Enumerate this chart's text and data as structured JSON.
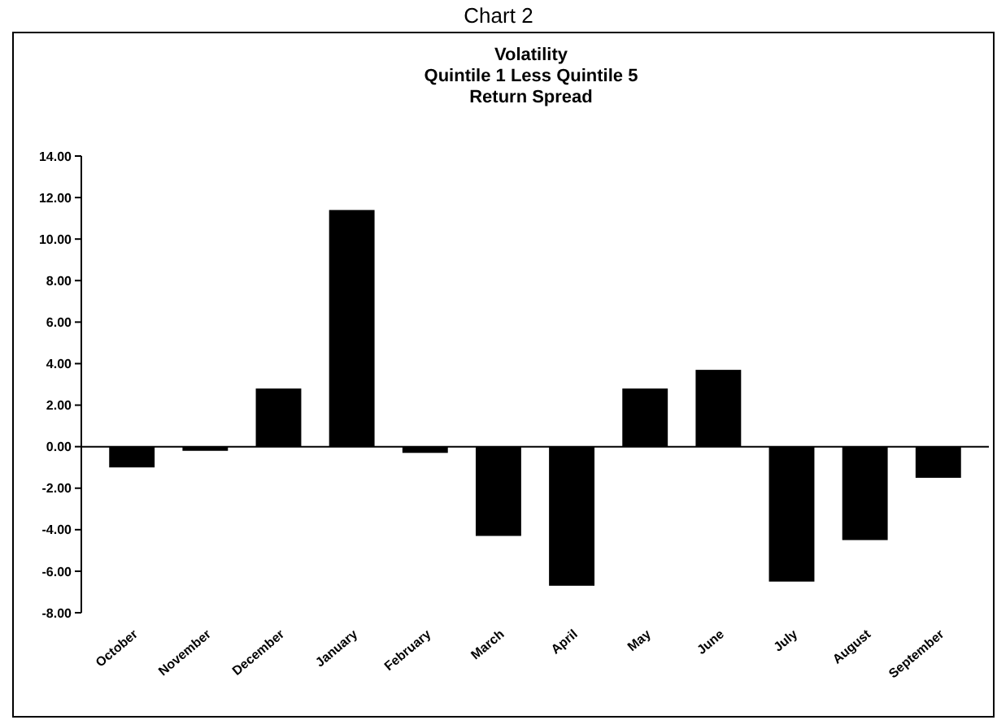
{
  "chart_data": {
    "type": "bar",
    "title": "Chart 2",
    "subtitle": "Volatility\nQuintile 1 Less Quintile 5\nReturn Spread",
    "categories": [
      "October",
      "November",
      "December",
      "January",
      "February",
      "March",
      "April",
      "May",
      "June",
      "July",
      "August",
      "September"
    ],
    "values": [
      -1.0,
      -0.2,
      2.8,
      11.4,
      -0.3,
      -4.3,
      -6.7,
      2.8,
      3.7,
      -6.5,
      -4.5,
      -1.5
    ],
    "color": "#000000",
    "ylim": [
      -8,
      14
    ],
    "yticks": [
      {
        "value": -8,
        "label": "-8.00"
      },
      {
        "value": -6,
        "label": "-6.00"
      },
      {
        "value": -4,
        "label": "-4.00"
      },
      {
        "value": -2,
        "label": "-2.00"
      },
      {
        "value": 0,
        "label": "0.00"
      },
      {
        "value": 2,
        "label": "2.00"
      },
      {
        "value": 4,
        "label": "4.00"
      },
      {
        "value": 6,
        "label": "6.00"
      },
      {
        "value": 8,
        "label": "8.00"
      },
      {
        "value": 10,
        "label": "10.00"
      },
      {
        "value": 12,
        "label": "12.00"
      },
      {
        "value": 14,
        "label": "14.00"
      }
    ],
    "orientation": "vertical"
  }
}
